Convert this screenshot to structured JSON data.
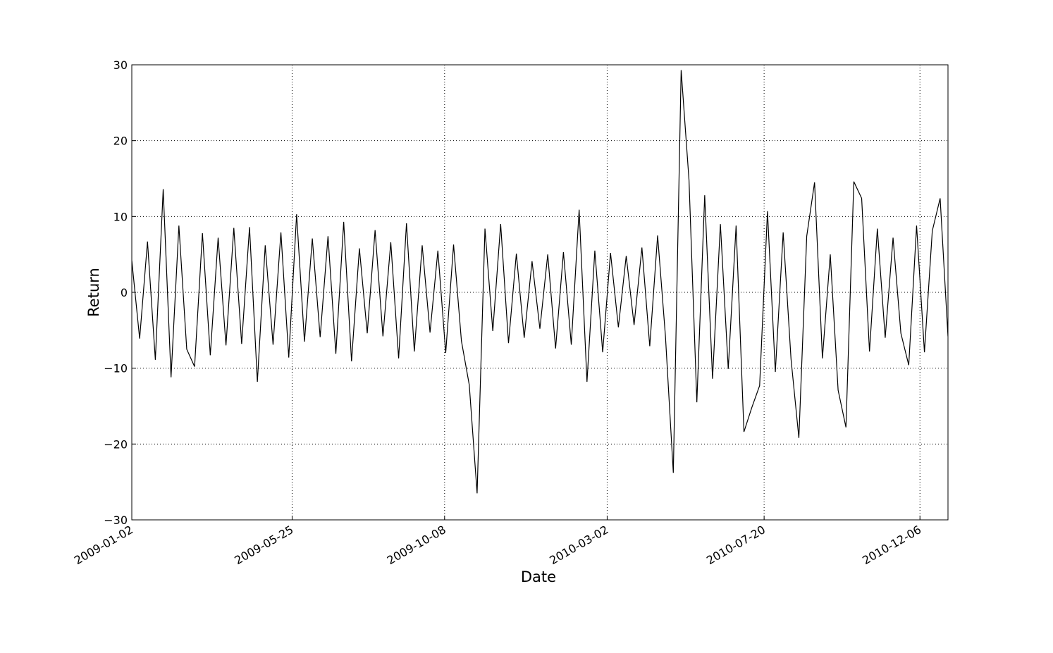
{
  "chart_data": {
    "type": "line",
    "x_label": "Date",
    "y_label": "Return",
    "color": "#000000",
    "grid": true,
    "xlim": [
      "2009-01-02",
      "2010-12-31"
    ],
    "xticks": [
      "2009-01-02",
      "2009-05-25",
      "2009-10-08",
      "2010-03-02",
      "2010-07-20",
      "2010-12-06"
    ],
    "ylim": [
      -30,
      30
    ],
    "yticks": [
      {
        "value": -30,
        "label": "−30"
      },
      {
        "value": -20,
        "label": "−20"
      },
      {
        "value": -10,
        "label": "−10"
      },
      0,
      10,
      20,
      30
    ],
    "x": [
      "2009-01-02",
      "2009-01-09",
      "2009-01-16",
      "2009-01-23",
      "2009-01-30",
      "2009-02-06",
      "2009-02-13",
      "2009-02-20",
      "2009-02-27",
      "2009-03-06",
      "2009-03-13",
      "2009-03-20",
      "2009-03-27",
      "2009-04-03",
      "2009-04-10",
      "2009-04-17",
      "2009-04-24",
      "2009-05-01",
      "2009-05-08",
      "2009-05-15",
      "2009-05-22",
      "2009-05-29",
      "2009-06-05",
      "2009-06-12",
      "2009-06-19",
      "2009-06-26",
      "2009-07-03",
      "2009-07-10",
      "2009-07-17",
      "2009-07-24",
      "2009-07-31",
      "2009-08-07",
      "2009-08-14",
      "2009-08-21",
      "2009-08-28",
      "2009-09-04",
      "2009-09-11",
      "2009-09-18",
      "2009-09-25",
      "2009-10-02",
      "2009-10-09",
      "2009-10-16",
      "2009-10-23",
      "2009-10-30",
      "2009-11-06",
      "2009-11-13",
      "2009-11-20",
      "2009-11-27",
      "2009-12-04",
      "2009-12-11",
      "2009-12-18",
      "2009-12-25",
      "2010-01-01",
      "2010-01-08",
      "2010-01-15",
      "2010-01-22",
      "2010-01-29",
      "2010-02-05",
      "2010-02-12",
      "2010-02-19",
      "2010-02-26",
      "2010-03-05",
      "2010-03-12",
      "2010-03-19",
      "2010-03-26",
      "2010-04-02",
      "2010-04-09",
      "2010-04-16",
      "2010-04-23",
      "2010-04-30",
      "2010-05-07",
      "2010-05-14",
      "2010-05-21",
      "2010-05-28",
      "2010-06-04",
      "2010-06-11",
      "2010-06-18",
      "2010-06-25",
      "2010-07-02",
      "2010-07-09",
      "2010-07-16",
      "2010-07-23",
      "2010-07-30",
      "2010-08-06",
      "2010-08-13",
      "2010-08-20",
      "2010-08-27",
      "2010-09-03",
      "2010-09-10",
      "2010-09-17",
      "2010-09-24",
      "2010-10-01",
      "2010-10-08",
      "2010-10-15",
      "2010-10-22",
      "2010-10-29",
      "2010-11-05",
      "2010-11-12",
      "2010-11-19",
      "2010-11-26",
      "2010-12-03",
      "2010-12-10",
      "2010-12-17",
      "2010-12-24",
      "2010-12-31"
    ],
    "values": [
      4.2,
      -6.1,
      6.7,
      -8.9,
      13.6,
      -11.2,
      8.8,
      -7.5,
      -9.8,
      7.8,
      -8.3,
      7.2,
      -7.0,
      8.5,
      -6.8,
      8.6,
      -11.8,
      6.2,
      -6.9,
      7.9,
      -8.6,
      10.3,
      -6.5,
      7.1,
      -5.9,
      7.4,
      -8.1,
      9.3,
      -9.1,
      5.8,
      -5.4,
      8.2,
      -5.8,
      6.6,
      -8.7,
      9.1,
      -7.8,
      6.2,
      -5.3,
      5.5,
      -8.0,
      6.3,
      -6.4,
      -12.2,
      -26.5,
      8.4,
      -5.1,
      9.0,
      -6.7,
      5.1,
      -6.0,
      4.1,
      -4.8,
      5.0,
      -7.4,
      5.3,
      -6.9,
      10.9,
      -11.8,
      5.5,
      -7.9,
      5.2,
      -4.6,
      4.8,
      -4.3,
      5.9,
      -7.1,
      7.5,
      -5.8,
      -23.8,
      29.3,
      14.8,
      -14.5,
      12.8,
      -11.4,
      9.0,
      -10.1,
      8.8,
      -18.4,
      -15.2,
      -12.3,
      10.7,
      -10.5,
      7.9,
      -8.8,
      -19.2,
      7.4,
      14.5,
      -8.7,
      5.0,
      -12.9,
      -17.8,
      14.6,
      12.4,
      -7.8,
      8.4,
      -6.0,
      7.2,
      -5.4,
      -9.6,
      8.8,
      -7.9,
      8.1,
      12.4,
      -5.8
    ]
  }
}
